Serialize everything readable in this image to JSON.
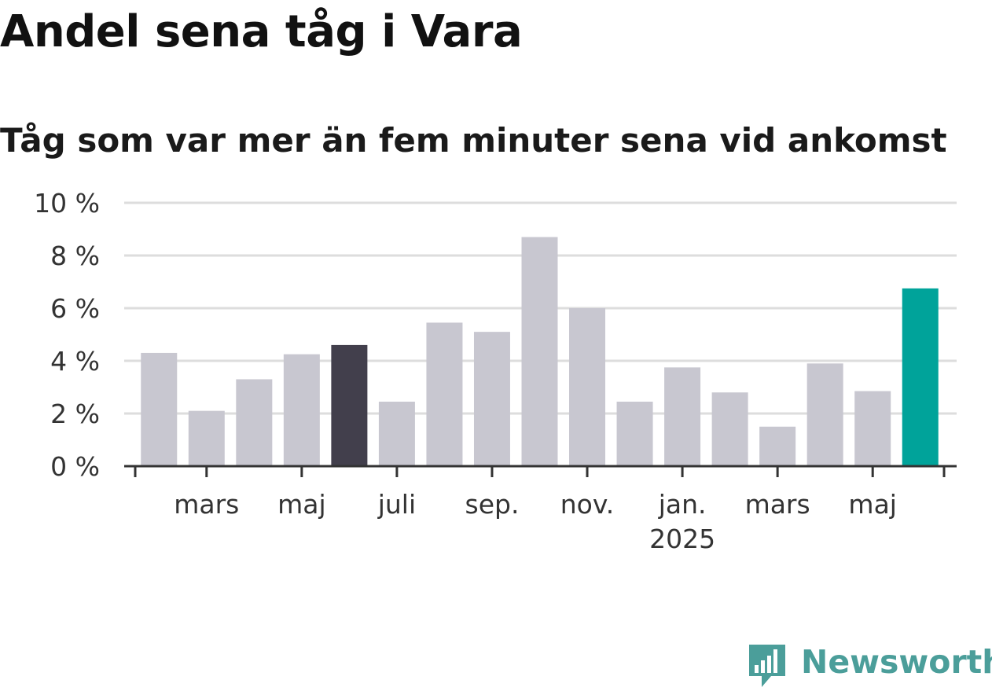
{
  "header": {
    "title": "Andel sena tåg i Vara",
    "subtitle": "Tåg som var mer än fem minuter sena vid ankomst"
  },
  "brand": {
    "name": "Newsworthy",
    "color": "#4b9e9a"
  },
  "colors": {
    "bar_default": "#c8c7d0",
    "bar_highlight_dark": "#423f4c",
    "bar_latest": "#00a39a",
    "gridline": "#dddddd",
    "axis": "#333333"
  },
  "chart_data": {
    "type": "bar",
    "title": "Andel sena tåg i Vara",
    "subtitle": "Tåg som var mer än fem minuter sena vid ankomst",
    "xlabel": "",
    "ylabel": "",
    "ylim": [
      0,
      10
    ],
    "y_ticks": [
      "0 %",
      "2 %",
      "4 %",
      "6 %",
      "8 %",
      "10 %"
    ],
    "grid": true,
    "categories": [
      "2024-02",
      "2024-03",
      "2024-04",
      "2024-05",
      "2024-06",
      "2024-07",
      "2024-08",
      "2024-09",
      "2024-10",
      "2024-11",
      "2024-12",
      "2025-01",
      "2025-02",
      "2025-03",
      "2025-04",
      "2025-05",
      "2025-06"
    ],
    "values": [
      4.3,
      2.1,
      3.3,
      4.25,
      4.6,
      2.45,
      5.45,
      5.1,
      8.7,
      6.0,
      2.45,
      3.75,
      2.8,
      1.5,
      3.9,
      2.85,
      6.75
    ],
    "highlight": {
      "2024-06": "bar_highlight_dark",
      "2025-06": "bar_latest"
    },
    "x_ticks": [
      {
        "label": "mars",
        "category": "2024-03"
      },
      {
        "label": "maj",
        "category": "2024-05"
      },
      {
        "label": "juli",
        "category": "2024-07"
      },
      {
        "label": "sep.",
        "category": "2024-09"
      },
      {
        "label": "nov.",
        "category": "2024-11"
      },
      {
        "label": "jan.",
        "sublabel": "2025",
        "category": "2025-01"
      },
      {
        "label": "mars",
        "category": "2025-03"
      },
      {
        "label": "maj",
        "category": "2025-05"
      }
    ]
  }
}
